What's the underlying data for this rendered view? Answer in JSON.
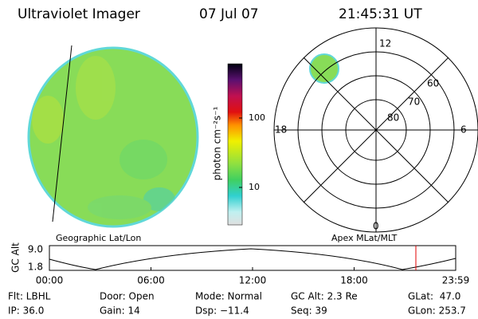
{
  "header": {
    "title": "Ultraviolet Imager",
    "date": "07 Jul 07",
    "time": "21:45:31 UT"
  },
  "colorbar": {
    "label": "photon cm⁻²s⁻¹",
    "ticks": [
      "100",
      "10"
    ]
  },
  "polar": {
    "mlt_labels": [
      "12",
      "18",
      "6",
      "0"
    ],
    "lat_labels": [
      "60",
      "70",
      "80"
    ]
  },
  "panel_labels": [
    "Geographic Lat/Lon",
    "Apex MLat/MLT"
  ],
  "altitude_plot": {
    "ylabel": "GC Alt",
    "yticks": [
      "9.0",
      "1.8"
    ],
    "xticks": [
      "00:00",
      "06:00",
      "12:00",
      "18:00",
      "23:59"
    ]
  },
  "info": [
    [
      "Flt: LBHL",
      "Door: Open",
      "Mode: Normal",
      "GC Alt: 2.3 Re",
      "GLat:  47.0"
    ],
    [
      "IP: 36.0",
      "Gain: 14",
      "Dsp: −11.4",
      "Seq: 39",
      "GLon: 253.7"
    ]
  ]
}
